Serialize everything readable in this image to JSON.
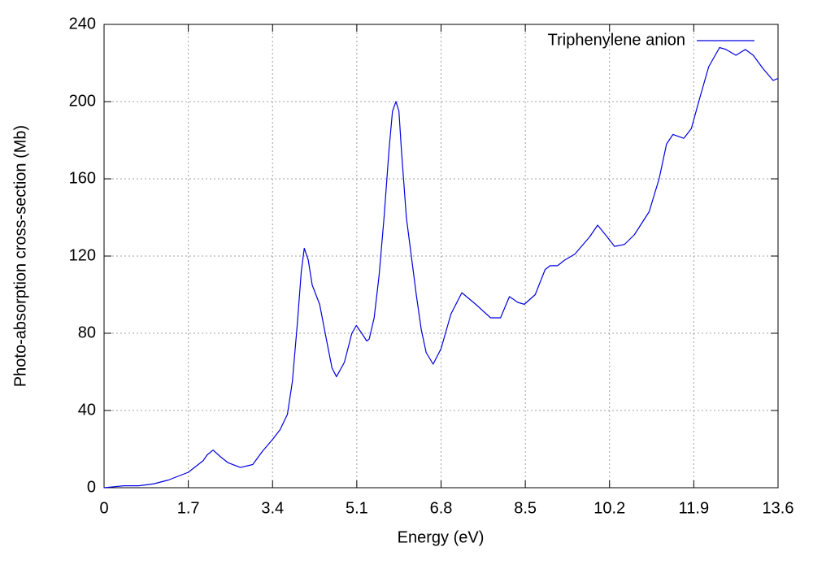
{
  "chart_data": {
    "type": "line",
    "xlabel": "Energy (eV)",
    "ylabel": "Photo-absorption cross-section (Mb)",
    "x": [
      0,
      0.2,
      0.4,
      0.7,
      1.0,
      1.3,
      1.5,
      1.7,
      1.9,
      2.0,
      2.08,
      2.2,
      2.35,
      2.5,
      2.75,
      3.0,
      3.2,
      3.4,
      3.55,
      3.7,
      3.8,
      3.9,
      3.98,
      4.04,
      4.12,
      4.2,
      4.35,
      4.5,
      4.6,
      4.69,
      4.85,
      5.0,
      5.09,
      5.2,
      5.3,
      5.35,
      5.45,
      5.55,
      5.65,
      5.75,
      5.82,
      5.89,
      5.95,
      6.0,
      6.1,
      6.2,
      6.3,
      6.4,
      6.5,
      6.64,
      6.8,
      7.0,
      7.22,
      7.5,
      7.8,
      8.0,
      8.18,
      8.35,
      8.48,
      8.7,
      8.9,
      9.0,
      9.15,
      9.3,
      9.5,
      9.8,
      9.96,
      10.15,
      10.3,
      10.5,
      10.7,
      11.0,
      11.2,
      11.35,
      11.48,
      11.7,
      11.85,
      12.0,
      12.2,
      12.42,
      12.55,
      12.75,
      12.94,
      13.1,
      13.3,
      13.5,
      13.6
    ],
    "series": [
      {
        "name": "Triphenylene anion",
        "color": "#0000e0",
        "values": [
          0,
          0.5,
          1,
          1,
          2,
          4,
          6,
          8,
          12,
          14,
          17,
          19.5,
          16,
          13,
          10.5,
          12,
          19,
          25,
          30,
          38,
          55,
          85,
          112,
          124,
          118,
          105,
          95,
          75,
          62,
          57.5,
          65,
          80,
          84,
          80,
          76,
          77,
          88,
          110,
          140,
          175,
          195,
          200,
          195,
          175,
          140,
          120,
          100,
          82,
          70,
          64,
          72,
          90,
          101,
          95,
          88,
          88,
          99,
          96,
          95,
          100,
          113,
          115,
          115,
          118,
          121,
          130,
          136,
          130,
          125,
          126,
          131,
          143,
          160,
          178,
          183,
          181,
          186,
          200,
          218,
          228,
          227,
          224,
          227,
          224,
          217,
          211,
          212
        ]
      }
    ],
    "xlim": [
      0,
      13.6
    ],
    "xticks": [
      0,
      1.7,
      3.4,
      5.1,
      6.8,
      8.5,
      10.2,
      11.9,
      13.6
    ],
    "ylim": [
      0,
      240
    ],
    "yticks": [
      0,
      40,
      80,
      120,
      160,
      200,
      240
    ],
    "grid": true,
    "legend": "top-right"
  }
}
